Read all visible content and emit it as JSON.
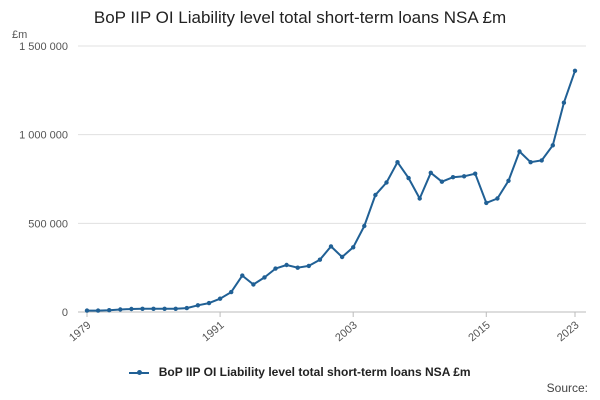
{
  "chart_data": {
    "type": "line",
    "title": "BoP IIP OI Liability level total short-term loans NSA £m",
    "ylabel": "£m",
    "xlabel": "",
    "ylim": [
      0,
      1500000
    ],
    "yticks": [
      {
        "value": 0,
        "label": "0"
      },
      {
        "value": 500000,
        "label": "500 000"
      },
      {
        "value": 1000000,
        "label": "1 000 000"
      },
      {
        "value": 1500000,
        "label": "1 500 000"
      }
    ],
    "xticks": [
      {
        "value": 1979,
        "label": "1979"
      },
      {
        "value": 1991,
        "label": "1991"
      },
      {
        "value": 2003,
        "label": "2003"
      },
      {
        "value": 2015,
        "label": "2015"
      },
      {
        "value": 2023,
        "label": "2023"
      }
    ],
    "grid": "horizontal",
    "legend_position": "bottom",
    "series": [
      {
        "name": "BoP IIP OI Liability level total short-term loans NSA £m",
        "color": "#206095",
        "x": [
          1979,
          1980,
          1981,
          1982,
          1983,
          1984,
          1985,
          1986,
          1987,
          1988,
          1989,
          1990,
          1991,
          1992,
          1993,
          1994,
          1995,
          1996,
          1997,
          1998,
          1999,
          2000,
          2001,
          2002,
          2003,
          2004,
          2005,
          2006,
          2007,
          2008,
          2009,
          2010,
          2011,
          2012,
          2013,
          2014,
          2015,
          2016,
          2017,
          2018,
          2019,
          2020,
          2021,
          2022,
          2023
        ],
        "values": [
          8000,
          8000,
          10000,
          14000,
          17000,
          18000,
          18000,
          18000,
          18000,
          22000,
          38000,
          50000,
          75000,
          112000,
          205000,
          155000,
          195000,
          245000,
          265000,
          250000,
          260000,
          295000,
          370000,
          310000,
          365000,
          485000,
          660000,
          730000,
          845000,
          755000,
          640000,
          785000,
          735000,
          760000,
          765000,
          780000,
          615000,
          640000,
          740000,
          905000,
          845000,
          855000,
          940000,
          1180000,
          1360000
        ]
      }
    ]
  },
  "source_label": "Source:"
}
